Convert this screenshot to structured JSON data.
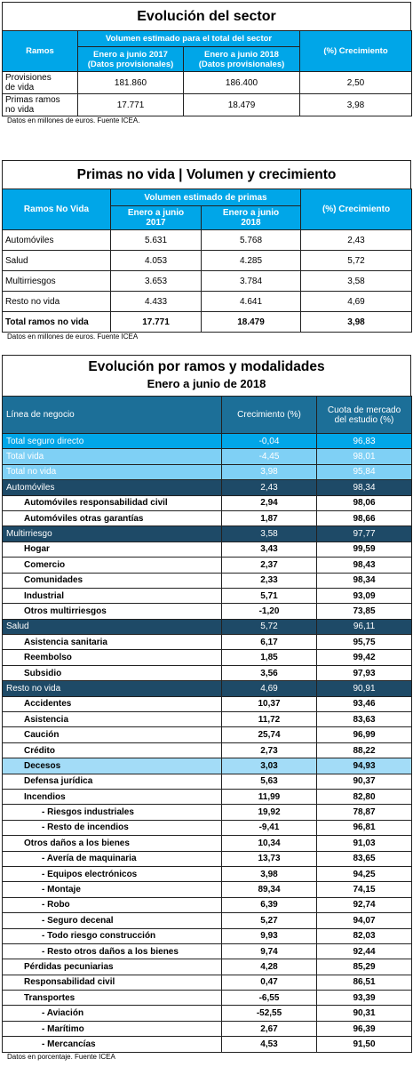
{
  "table1": {
    "title": "Evolución del sector",
    "header": {
      "ramos": "Ramos",
      "volume_group": "Volumen estimado para el total del sector",
      "period1_line1": "Enero a junio 2017",
      "period1_line2": "(Datos provisionales)",
      "period2_line1": "Enero a junio 2018",
      "period2_line2": "(Datos provisionales)",
      "growth": "(%) Crecimiento"
    },
    "rows": [
      {
        "label_line1": "Provisiones",
        "label_line2": "de vida",
        "v2017": "181.860",
        "v2018": "186.400",
        "growth": "2,50"
      },
      {
        "label_line1": "Primas ramos",
        "label_line2": "no vida",
        "v2017": "17.771",
        "v2018": "18.479",
        "growth": "3,98"
      }
    ],
    "note": "Datos en millones de euros. Fuente ICEA."
  },
  "table2": {
    "title": "Primas no vida | Volumen y crecimiento",
    "header": {
      "ramos": "Ramos No Vida",
      "volume_group": "Volumen estimado de primas",
      "period1_line1": "Enero a junio",
      "period1_line2": "2017",
      "period2_line1": "Enero a junio",
      "period2_line2": "2018",
      "growth": "(%) Crecimiento"
    },
    "rows": [
      {
        "label": "Automóviles",
        "v2017": "5.631",
        "v2018": "5.768",
        "growth": "2,43"
      },
      {
        "label": "Salud",
        "v2017": "4.053",
        "v2018": "4.285",
        "growth": "5,72"
      },
      {
        "label": "Multirriesgos",
        "v2017": "3.653",
        "v2018": "3.784",
        "growth": "3,58"
      },
      {
        "label": "Resto no vida",
        "v2017": "4.433",
        "v2018": "4.641",
        "growth": "4,69"
      },
      {
        "label": "Total ramos no vida",
        "v2017": "17.771",
        "v2018": "18.479",
        "growth": "3,98"
      }
    ],
    "note": "Datos en millones de euros. Fuente ICEA"
  },
  "table3": {
    "title": "Evolución por ramos y modalidades",
    "subtitle": "Enero a junio de 2018",
    "header": {
      "line": "Línea de negocio",
      "growth": "Crecimiento (%)",
      "share_line1": "Cuota de mercado",
      "share_line2": "del estudio (%)"
    },
    "colors": {
      "cyan": "#00a6e8",
      "light": "#7fd0f5",
      "navy": "#1e4a67",
      "pale": "#a3dcf7",
      "header": "#1c6f98"
    },
    "rows": [
      {
        "label": "Total seguro directo",
        "growth": "-0,04",
        "share": "96,83",
        "style": "cyan"
      },
      {
        "label": "Total vida",
        "growth": "-4,45",
        "share": "98,01",
        "style": "light"
      },
      {
        "label": "Total no vida",
        "growth": "3,98",
        "share": "95,84",
        "style": "light"
      },
      {
        "label": "Automóviles",
        "growth": "2,43",
        "share": "98,34",
        "style": "navy"
      },
      {
        "label": "Automóviles responsabilidad civil",
        "growth": "2,94",
        "share": "98,06",
        "style": "sub"
      },
      {
        "label": "Automóviles otras garantías",
        "growth": "1,87",
        "share": "98,66",
        "style": "sub"
      },
      {
        "label": "Multirriesgo",
        "growth": "3,58",
        "share": "97,77",
        "style": "navy"
      },
      {
        "label": "Hogar",
        "growth": "3,43",
        "share": "99,59",
        "style": "sub"
      },
      {
        "label": "Comercio",
        "growth": "2,37",
        "share": "98,43",
        "style": "sub"
      },
      {
        "label": "Comunidades",
        "growth": "2,33",
        "share": "98,34",
        "style": "sub"
      },
      {
        "label": "Industrial",
        "growth": "5,71",
        "share": "93,09",
        "style": "sub"
      },
      {
        "label": "Otros multirriesgos",
        "growth": "-1,20",
        "share": "73,85",
        "style": "sub"
      },
      {
        "label": "Salud",
        "growth": "5,72",
        "share": "96,11",
        "style": "navy"
      },
      {
        "label": "Asistencia sanitaria",
        "growth": "6,17",
        "share": "95,75",
        "style": "sub"
      },
      {
        "label": "Reembolso",
        "growth": "1,85",
        "share": "99,42",
        "style": "sub"
      },
      {
        "label": "Subsidio",
        "growth": "3,56",
        "share": "97,93",
        "style": "sub"
      },
      {
        "label": "Resto no vida",
        "growth": "4,69",
        "share": "90,91",
        "style": "navy"
      },
      {
        "label": "Accidentes",
        "growth": "10,37",
        "share": "93,46",
        "style": "sub"
      },
      {
        "label": "Asistencia",
        "growth": "11,72",
        "share": "83,63",
        "style": "sub"
      },
      {
        "label": "Caución",
        "growth": "25,74",
        "share": "96,99",
        "style": "sub"
      },
      {
        "label": "Crédito",
        "growth": "2,73",
        "share": "88,22",
        "style": "sub"
      },
      {
        "label": "Decesos",
        "growth": "3,03",
        "share": "94,93",
        "style": "sub pale"
      },
      {
        "label": "Defensa jurídica",
        "growth": "5,63",
        "share": "90,37",
        "style": "sub"
      },
      {
        "label": "Incendios",
        "growth": "11,99",
        "share": "82,80",
        "style": "sub"
      },
      {
        "label": "- Riesgos industriales",
        "growth": "19,92",
        "share": "78,87",
        "style": "sub2"
      },
      {
        "label": "- Resto de incendios",
        "growth": "-9,41",
        "share": "96,81",
        "style": "sub2"
      },
      {
        "label": "Otros daños a los bienes",
        "growth": "10,34",
        "share": "91,03",
        "style": "sub"
      },
      {
        "label": "- Avería de maquinaria",
        "growth": "13,73",
        "share": "83,65",
        "style": "sub2"
      },
      {
        "label": "- Equipos electrónicos",
        "growth": "3,98",
        "share": "94,25",
        "style": "sub2"
      },
      {
        "label": "- Montaje",
        "growth": "89,34",
        "share": "74,15",
        "style": "sub2"
      },
      {
        "label": "- Robo",
        "growth": "6,39",
        "share": "92,74",
        "style": "sub2"
      },
      {
        "label": "- Seguro decenal",
        "growth": "5,27",
        "share": "94,07",
        "style": "sub2"
      },
      {
        "label": "- Todo riesgo construcción",
        "growth": "9,93",
        "share": "82,03",
        "style": "sub2"
      },
      {
        "label": "- Resto otros daños a los bienes",
        "growth": "9,74",
        "share": "92,44",
        "style": "sub2"
      },
      {
        "label": "Pérdidas pecuniarias",
        "growth": "4,28",
        "share": "85,29",
        "style": "sub"
      },
      {
        "label": "Responsabilidad civil",
        "growth": "0,47",
        "share": "86,51",
        "style": "sub"
      },
      {
        "label": "Transportes",
        "growth": "-6,55",
        "share": "93,39",
        "style": "sub"
      },
      {
        "label": "- Aviación",
        "growth": "-52,55",
        "share": "90,31",
        "style": "sub2"
      },
      {
        "label": "- Marítimo",
        "growth": "2,67",
        "share": "96,39",
        "style": "sub2"
      },
      {
        "label": "- Mercancías",
        "growth": "4,53",
        "share": "91,50",
        "style": "sub2"
      }
    ],
    "note": "Datos en porcentaje. Fuente ICEA"
  }
}
